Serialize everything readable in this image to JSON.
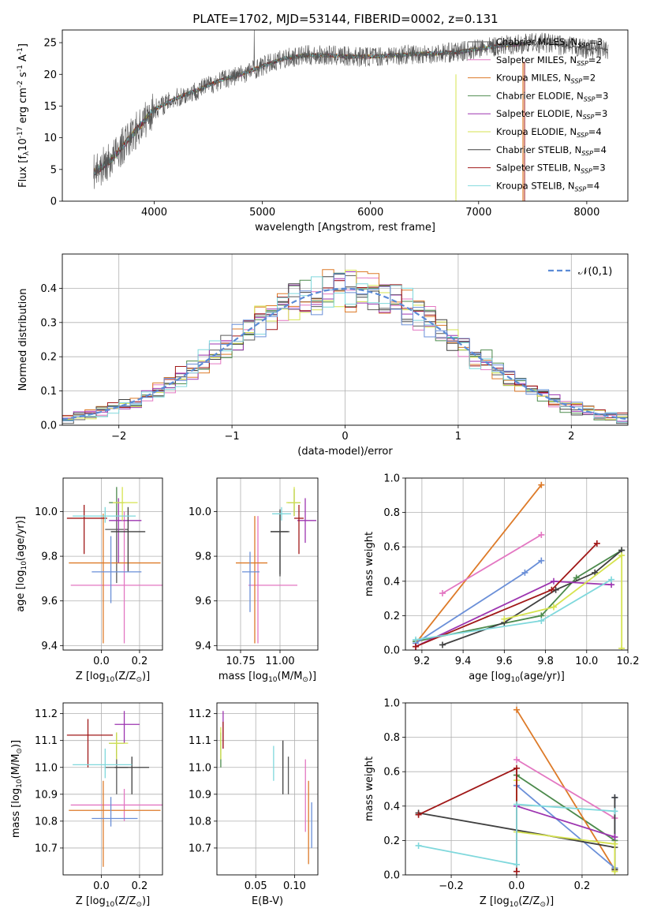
{
  "title": "PLATE=1702, MJD=53144, FIBERID=0002, z=0.131",
  "colors": [
    "#5a5a5a",
    "#e377c2",
    "#dd7a28",
    "#4c8a4c",
    "#9d35b0",
    "#d6e34f",
    "#404040",
    "#a01818",
    "#7fd8dc",
    "#6a8fd8"
  ],
  "models": [
    {
      "label": "Chabrier MILES, N$_{SSP}$=3",
      "text": "Chabrier MILES, N",
      "sub": "SSP",
      "rest": "=3",
      "color": "#5a5a5a"
    },
    {
      "label": "Salpeter MILES, N$_{SSP}$=2",
      "text": "Salpeter MILES, N",
      "sub": "SSP",
      "rest": "=2",
      "color": "#e377c2"
    },
    {
      "label": "Kroupa MILES, N$_{SSP}$=2",
      "text": "Kroupa MILES, N",
      "sub": "SSP",
      "rest": "=2",
      "color": "#dd7a28"
    },
    {
      "label": "Chabrier ELODIE, N$_{SSP}$=3",
      "text": "Chabrier ELODIE, N",
      "sub": "SSP",
      "rest": "=3",
      "color": "#4c8a4c"
    },
    {
      "label": "Salpeter ELODIE, N$_{SSP}$=3",
      "text": "Salpeter ELODIE, N",
      "sub": "SSP",
      "rest": "=3",
      "color": "#9d35b0"
    },
    {
      "label": "Kroupa ELODIE, N$_{SSP}$=4",
      "text": "Kroupa ELODIE, N",
      "sub": "SSP",
      "rest": "=4",
      "color": "#d6e34f"
    },
    {
      "label": "Chabrier STELIB, N$_{SSP}$=4",
      "text": "Chabrier STELIB, N",
      "sub": "SSP",
      "rest": "=4",
      "color": "#404040"
    },
    {
      "label": "Salpeter STELIB, N$_{SSP}$=3",
      "text": "Salpeter STELIB, N",
      "sub": "SSP",
      "rest": "=3",
      "color": "#a01818"
    },
    {
      "label": "Kroupa STELIB, N$_{SSP}$=4",
      "text": "Kroupa STELIB, N",
      "sub": "SSP",
      "rest": "=4",
      "color": "#7fd8dc"
    }
  ],
  "chart_data": [
    {
      "id": "spectrum",
      "type": "line",
      "title": "PLATE=1702, MJD=53144, FIBERID=0002, z=0.131",
      "xlabel": "wavelength [Angstrom, rest frame]",
      "ylabel": "Flux [f$_\\lambda$10$^{-17}$ erg cm$^{-2}$ s$^{-1}$ A$^{-1}$]",
      "xlim": [
        3150,
        8380
      ],
      "ylim": [
        0,
        27
      ],
      "xticks": [
        4000,
        5000,
        6000,
        7000,
        8000
      ],
      "yticks": [
        0,
        5,
        10,
        15,
        20,
        25
      ],
      "grid": false,
      "legend": "right",
      "x": [
        3440,
        3600,
        3800,
        4000,
        4200,
        4400,
        4600,
        4800,
        5000,
        5200,
        5400,
        5600,
        5800,
        6000,
        6200,
        6400,
        6600,
        6800,
        7000,
        7200,
        7400,
        7600,
        7800,
        8000,
        8200
      ],
      "y": [
        4.5,
        6.5,
        10.5,
        14.5,
        16.2,
        17.5,
        19.0,
        20.0,
        21.3,
        22.5,
        23.0,
        23.0,
        22.8,
        22.8,
        23.0,
        23.2,
        23.3,
        23.5,
        24.0,
        24.5,
        24.8,
        25.0,
        24.5,
        24.0,
        24.0
      ],
      "series": [
        {
          "x": [
            3440,
            3600,
            3800,
            4000,
            4200,
            4400,
            4600,
            4800,
            5000,
            5200,
            5400,
            5600,
            5800,
            6000,
            6200,
            6400,
            6600,
            6800,
            7000,
            7200,
            7400,
            7600,
            7800,
            8000,
            8200
          ],
          "y": [
            4.5,
            6.5,
            10.5,
            14.5,
            16.2,
            17.5,
            19.0,
            20.0,
            21.3,
            22.5,
            23.0,
            23.0,
            22.8,
            22.8,
            23.0,
            23.2,
            23.3,
            23.5,
            24.0,
            24.5,
            24.8,
            25.0,
            24.5,
            24.0,
            24.0
          ]
        }
      ]
    },
    {
      "id": "residuals",
      "type": "bar",
      "xlabel": "(data-model)/error",
      "ylabel": "Normed distribution",
      "xlim": [
        -2.5,
        2.5
      ],
      "ylim": [
        0,
        0.5
      ],
      "xticks": [
        -2,
        -1,
        0,
        1,
        2
      ],
      "yticks": [
        0.0,
        0.1,
        0.2,
        0.3,
        0.4
      ],
      "grid": true,
      "legend": "top-right",
      "reference": {
        "name": "$\\mathcal{N}(0,1)$",
        "color": "#5b8bd6"
      }
    },
    {
      "id": "z_age",
      "type": "scatter",
      "xlabel": "Z [log$_{10}$(Z/Z$_\\odot$)]",
      "ylabel": "age  [log$_{10}$(age/yr)]",
      "xlim": [
        -0.2,
        0.32
      ],
      "ylim": [
        9.38,
        10.15
      ],
      "xticks": [
        0.0,
        0.2
      ],
      "yticks": [
        9.4,
        9.6,
        9.8,
        10.0
      ],
      "grid": true,
      "points": [
        {
          "x": 0.08,
          "y": 9.92,
          "xerr": [
            0.06,
            0.06
          ],
          "yerr": [
            0.24,
            0.08
          ],
          "color": "#5a5a5a"
        },
        {
          "x": 0.12,
          "y": 9.67,
          "xerr": [
            0.28,
            0.2
          ],
          "yerr": [
            0.26,
            0.33
          ],
          "color": "#e377c2"
        },
        {
          "x": 0.01,
          "y": 9.77,
          "xerr": [
            0.18,
            0.3
          ],
          "yerr": [
            0.36,
            0.22
          ],
          "color": "#dd7a28"
        },
        {
          "x": 0.08,
          "y": 10.04,
          "xerr": [
            0.04,
            0.04
          ],
          "yerr": [
            0.06,
            0.07
          ],
          "color": "#4c8a4c"
        },
        {
          "x": 0.09,
          "y": 9.96,
          "xerr": [
            0.05,
            0.12
          ],
          "yerr": [
            0.19,
            0.1
          ],
          "color": "#9d35b0"
        },
        {
          "x": 0.11,
          "y": 10.04,
          "xerr": [
            0.05,
            0.08
          ],
          "yerr": [
            0.08,
            0.07
          ],
          "color": "#d6e34f"
        },
        {
          "x": 0.14,
          "y": 9.91,
          "xerr": [
            0.09,
            0.09
          ],
          "yerr": [
            0.18,
            0.11
          ],
          "color": "#404040"
        },
        {
          "x": -0.09,
          "y": 9.97,
          "xerr": [
            0.09,
            0.12
          ],
          "yerr": [
            0.16,
            0.06
          ],
          "color": "#a01818"
        },
        {
          "x": 0.02,
          "y": 9.98,
          "xerr": [
            0.17,
            0.16
          ],
          "yerr": [
            0.03,
            0.04
          ],
          "color": "#7fd8dc"
        },
        {
          "x": 0.05,
          "y": 9.73,
          "xerr": [
            0.1,
            0.16
          ],
          "yerr": [
            0.14,
            0.16
          ],
          "color": "#6a8fd8"
        }
      ]
    },
    {
      "id": "mass_age",
      "type": "scatter",
      "xlabel": "mass [log$_{10}$(M/M$_\\odot$)]",
      "ylabel": "",
      "xlim": [
        10.6,
        11.24
      ],
      "ylim": [
        9.38,
        10.15
      ],
      "xticks": [
        10.75,
        11.0
      ],
      "yticks": [
        9.4,
        9.6,
        9.8,
        10.0
      ],
      "grid": true,
      "points": [
        {
          "x": 11.0,
          "y": 9.91,
          "xerr": [
            0.06,
            0.06
          ],
          "yerr": [
            0.19,
            0.08
          ],
          "color": "#5a5a5a"
        },
        {
          "x": 10.86,
          "y": 9.67,
          "xerr": [
            0.06,
            0.25
          ],
          "yerr": [
            0.26,
            0.31
          ],
          "color": "#e377c2"
        },
        {
          "x": 10.84,
          "y": 9.77,
          "xerr": [
            0.12,
            0.08
          ],
          "yerr": [
            0.36,
            0.21
          ],
          "color": "#dd7a28"
        },
        {
          "x": 11.09,
          "y": 10.04,
          "xerr": [
            0.04,
            0.04
          ],
          "yerr": [
            0.06,
            0.06
          ],
          "color": "#4c8a4c"
        },
        {
          "x": 11.16,
          "y": 9.96,
          "xerr": [
            0.05,
            0.07
          ],
          "yerr": [
            0.1,
            0.1
          ],
          "color": "#9d35b0"
        },
        {
          "x": 11.09,
          "y": 10.04,
          "xerr": [
            0.05,
            0.04
          ],
          "yerr": [
            0.06,
            0.07
          ],
          "color": "#d6e34f"
        },
        {
          "x": 11.0,
          "y": 9.91,
          "xerr": [
            0.06,
            0.05
          ],
          "yerr": [
            0.2,
            0.1
          ],
          "color": "#404040"
        },
        {
          "x": 11.12,
          "y": 9.97,
          "xerr": [
            0.03,
            0.03
          ],
          "yerr": [
            0.16,
            0.06
          ],
          "color": "#a01818"
        },
        {
          "x": 11.01,
          "y": 9.99,
          "xerr": [
            0.06,
            0.06
          ],
          "yerr": [
            0.03,
            0.03
          ],
          "color": "#7fd8dc"
        },
        {
          "x": 10.81,
          "y": 9.73,
          "xerr": [
            0.05,
            0.06
          ],
          "yerr": [
            0.18,
            0.09
          ],
          "color": "#6a8fd8"
        }
      ]
    },
    {
      "id": "weights_age",
      "type": "line",
      "xlabel": "age  [log$_{10}$(age/yr)]",
      "ylabel": "mass weight",
      "xlim": [
        9.12,
        10.2
      ],
      "ylim": [
        0,
        1
      ],
      "xticks": [
        9.2,
        9.4,
        9.6,
        9.8,
        10.0,
        10.2
      ],
      "yticks": [
        0.0,
        0.2,
        0.4,
        0.6,
        0.8,
        1.0
      ],
      "grid": true,
      "series": [
        {
          "x": [
            9.17,
            9.78,
            9.95,
            10.17
          ],
          "y": [
            0.05,
            0.2,
            0.42,
            0.58
          ],
          "color": "#4c8a4c"
        },
        {
          "x": [
            9.17,
            9.78
          ],
          "y": [
            0.04,
            0.96
          ],
          "color": "#dd7a28"
        },
        {
          "x": [
            9.3,
            9.78
          ],
          "y": [
            0.33,
            0.67
          ],
          "color": "#e377c2"
        },
        {
          "x": [
            9.17,
            9.7,
            9.78
          ],
          "y": [
            0.04,
            0.45,
            0.52
          ],
          "color": "#6a8fd8"
        },
        {
          "x": [
            9.3,
            9.6,
            9.85,
            10.04,
            10.17
          ],
          "y": [
            0.03,
            0.16,
            0.35,
            0.45,
            0.58
          ],
          "color": "#404040"
        },
        {
          "x": [
            9.17,
            9.84,
            10.12
          ],
          "y": [
            0.02,
            0.4,
            0.38
          ],
          "color": "#9d35b0"
        },
        {
          "x": [
            9.6,
            9.84,
            10.17,
            10.17
          ],
          "y": [
            0.18,
            0.25,
            0.55,
            0.01
          ],
          "color": "#d6e34f"
        },
        {
          "x": [
            9.17,
            9.83,
            10.05
          ],
          "y": [
            0.02,
            0.35,
            0.62
          ],
          "color": "#a01818"
        },
        {
          "x": [
            9.17,
            9.78,
            10.12
          ],
          "y": [
            0.06,
            0.17,
            0.41
          ],
          "color": "#7fd8dc"
        }
      ]
    },
    {
      "id": "z_mass",
      "type": "scatter",
      "xlabel": "Z [log$_{10}$(Z/Z$_\\odot$)]",
      "ylabel": "mass [log$_{10}$(M/M$_\\odot$)]",
      "xlim": [
        -0.2,
        0.32
      ],
      "ylim": [
        10.6,
        11.24
      ],
      "xticks": [
        0.0,
        0.2
      ],
      "yticks": [
        10.7,
        10.8,
        10.9,
        11.0,
        11.1,
        11.2
      ],
      "grid": true,
      "points": [
        {
          "x": 0.08,
          "y": 11.0,
          "xerr": [
            0.06,
            0.06
          ],
          "yerr": [
            0.1,
            0.08
          ],
          "color": "#5a5a5a"
        },
        {
          "x": 0.12,
          "y": 10.86,
          "xerr": [
            0.28,
            0.2
          ],
          "yerr": [
            0.06,
            0.06
          ],
          "color": "#e377c2"
        },
        {
          "x": 0.01,
          "y": 10.84,
          "xerr": [
            0.18,
            0.3
          ],
          "yerr": [
            0.21,
            0.11
          ],
          "color": "#dd7a28"
        },
        {
          "x": 0.08,
          "y": 11.09,
          "xerr": [
            0.04,
            0.04
          ],
          "yerr": [
            0.05,
            0.04
          ],
          "color": "#4c8a4c"
        },
        {
          "x": 0.12,
          "y": 11.16,
          "xerr": [
            0.05,
            0.08
          ],
          "yerr": [
            0.07,
            0.05
          ],
          "color": "#9d35b0"
        },
        {
          "x": 0.08,
          "y": 11.09,
          "xerr": [
            0.04,
            0.06
          ],
          "yerr": [
            0.06,
            0.04
          ],
          "color": "#d6e34f"
        },
        {
          "x": 0.16,
          "y": 11.0,
          "xerr": [
            0.09,
            0.09
          ],
          "yerr": [
            0.1,
            0.04
          ],
          "color": "#404040"
        },
        {
          "x": -0.07,
          "y": 11.12,
          "xerr": [
            0.11,
            0.13
          ],
          "yerr": [
            0.12,
            0.06
          ],
          "color": "#a01818"
        },
        {
          "x": 0.02,
          "y": 11.01,
          "xerr": [
            0.17,
            0.14
          ],
          "yerr": [
            0.05,
            0.06
          ],
          "color": "#7fd8dc"
        },
        {
          "x": 0.05,
          "y": 10.81,
          "xerr": [
            0.1,
            0.14
          ],
          "yerr": [
            0.03,
            0.08
          ],
          "color": "#6a8fd8"
        }
      ]
    },
    {
      "id": "ebv_mass",
      "type": "scatter",
      "xlabel": "E(B-V)",
      "ylabel": "",
      "xlim": [
        0.0,
        0.13
      ],
      "ylim": [
        10.6,
        11.24
      ],
      "xticks": [
        0.05,
        0.1
      ],
      "yticks": [
        10.7,
        10.8,
        10.9,
        11.0,
        11.1,
        11.2
      ],
      "grid": true,
      "points": [
        {
          "x": 0.092,
          "y": 11.0,
          "yerr": [
            0.1,
            0.04
          ],
          "color": "#5a5a5a"
        },
        {
          "x": 0.114,
          "y": 10.86,
          "yerr": [
            0.1,
            0.17
          ],
          "color": "#e377c2"
        },
        {
          "x": 0.118,
          "y": 10.84,
          "yerr": [
            0.2,
            0.11
          ],
          "color": "#dd7a28"
        },
        {
          "x": 0.005,
          "y": 11.07,
          "yerr": [
            0.07,
            0.06
          ],
          "color": "#4c8a4c"
        },
        {
          "x": 0.008,
          "y": 11.13,
          "yerr": [
            0.06,
            0.08
          ],
          "color": "#9d35b0"
        },
        {
          "x": 0.005,
          "y": 11.09,
          "yerr": [
            0.06,
            0.06
          ],
          "color": "#d6e34f"
        },
        {
          "x": 0.085,
          "y": 11.0,
          "yerr": [
            0.1,
            0.1
          ],
          "color": "#404040"
        },
        {
          "x": 0.008,
          "y": 11.12,
          "yerr": [
            0.05,
            0.05
          ],
          "color": "#a01818"
        },
        {
          "x": 0.073,
          "y": 11.01,
          "yerr": [
            0.06,
            0.07
          ],
          "color": "#7fd8dc"
        },
        {
          "x": 0.122,
          "y": 10.78,
          "yerr": [
            0.08,
            0.09
          ],
          "color": "#6a8fd8"
        }
      ]
    },
    {
      "id": "weights_z",
      "type": "line",
      "xlabel": "Z [log$_{10}$(Z/Z$_\\odot$)]",
      "ylabel": "mass weight",
      "xlim": [
        -0.34,
        0.34
      ],
      "ylim": [
        0,
        1
      ],
      "xticks": [
        -0.2,
        0.0,
        0.2
      ],
      "yticks": [
        0.0,
        0.2,
        0.4,
        0.6,
        0.8,
        1.0
      ],
      "grid": true,
      "series": [
        {
          "x": [
            0.0,
            0.3,
            0.3
          ],
          "y": [
            0.58,
            0.2,
            0.04
          ],
          "color": "#4c8a4c"
        },
        {
          "x": [
            0.0,
            0.3,
            0.3
          ],
          "y": [
            0.96,
            0.03,
            0.04
          ],
          "color": "#dd7a28"
        },
        {
          "x": [
            0.0,
            0.3
          ],
          "y": [
            0.67,
            0.33
          ],
          "color": "#e377c2"
        },
        {
          "x": [
            0.0,
            0.3,
            0.3
          ],
          "y": [
            0.52,
            0.04,
            0.45
          ],
          "color": "#6a8fd8"
        },
        {
          "x": [
            -0.3,
            0.3,
            0.3,
            0.3
          ],
          "y": [
            0.36,
            0.16,
            0.45,
            0.03
          ],
          "color": "#404040"
        },
        {
          "x": [
            0.0,
            0.3
          ],
          "y": [
            0.4,
            0.22
          ],
          "color": "#9d35b0"
        },
        {
          "x": [
            0.0,
            0.0,
            0.3,
            0.3
          ],
          "y": [
            0.55,
            0.25,
            0.18,
            0.02
          ],
          "color": "#d6e34f"
        },
        {
          "x": [
            -0.3,
            0.0,
            0.0
          ],
          "y": [
            0.35,
            0.62,
            0.02
          ],
          "color": "#a01818"
        },
        {
          "x": [
            -0.3,
            0.0,
            0.0,
            0.3
          ],
          "y": [
            0.17,
            0.06,
            0.41,
            0.37
          ],
          "color": "#7fd8dc"
        }
      ]
    }
  ]
}
